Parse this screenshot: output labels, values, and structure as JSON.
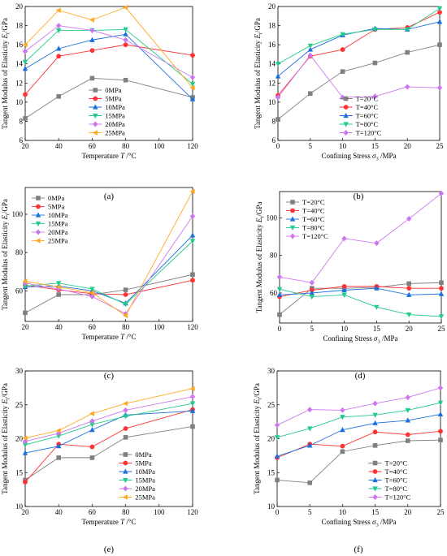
{
  "charts": [
    {
      "panel_label": "(a)",
      "type": "line",
      "title": "",
      "xlabel": "Temperature",
      "xlabel_sym": "T",
      "xlabel_unit": "/°C",
      "ylabel": "Tangent Modulus of Elasticity",
      "ylabel_sym": "E",
      "ylabel_sub": "t",
      "ylabel_unit": "/GPa",
      "xlim": [
        20,
        120
      ],
      "ylim": [
        6,
        20
      ],
      "xticks": [
        20,
        40,
        60,
        80,
        100,
        120
      ],
      "yticks": [
        6,
        8,
        10,
        12,
        14,
        16,
        18,
        20
      ],
      "legend_position": "lower-center",
      "x": [
        20,
        40,
        60,
        80,
        120
      ],
      "series": [
        {
          "name": "0MPa",
          "marker": "square",
          "values": [
            8.3,
            10.6,
            12.5,
            12.3,
            10.5
          ]
        },
        {
          "name": "5MPa",
          "marker": "circle",
          "values": [
            10.8,
            14.8,
            15.4,
            16.0,
            14.9
          ]
        },
        {
          "name": "10MPa",
          "marker": "triangle-up",
          "values": [
            13.5,
            15.6,
            16.5,
            17.1,
            10.3
          ]
        },
        {
          "name": "15MPa",
          "marker": "triangle-down",
          "values": [
            14.2,
            17.5,
            17.5,
            17.6,
            11.9
          ]
        },
        {
          "name": "20MPa",
          "marker": "diamond",
          "values": [
            15.3,
            18.0,
            17.5,
            16.5,
            12.6
          ]
        },
        {
          "name": "25MPa",
          "marker": "triangle-left",
          "values": [
            16.0,
            19.6,
            18.6,
            19.9,
            11.5
          ]
        }
      ]
    },
    {
      "panel_label": "(b)",
      "type": "line",
      "title": "",
      "xlabel": "Confining Stress",
      "xlabel_sym": "σ",
      "xlabel_sub": "3",
      "xlabel_unit": "/MPa",
      "ylabel": "Tangent Modulus of Elasticity",
      "ylabel_sym": "E",
      "ylabel_sub": "t",
      "ylabel_unit": "/GPa",
      "xlim": [
        0,
        25
      ],
      "ylim": [
        6,
        20
      ],
      "xticks": [
        0,
        5,
        10,
        15,
        20,
        25
      ],
      "yticks": [
        6,
        8,
        10,
        12,
        14,
        16,
        18,
        20
      ],
      "legend_position": "lower-center",
      "x": [
        0,
        5,
        10,
        15,
        20,
        25
      ],
      "series": [
        {
          "name": "T=20°C",
          "marker": "square",
          "values": [
            8.2,
            10.9,
            13.2,
            14.1,
            15.2,
            16.0
          ]
        },
        {
          "name": "T=40°C",
          "marker": "circle",
          "values": [
            10.7,
            14.8,
            15.5,
            17.6,
            17.8,
            19.4
          ]
        },
        {
          "name": "T=60°C",
          "marker": "triangle-up",
          "values": [
            12.7,
            15.5,
            17.0,
            17.7,
            17.6,
            18.4
          ]
        },
        {
          "name": "T=80°C",
          "marker": "triangle-down",
          "values": [
            14.0,
            15.9,
            17.1,
            17.6,
            17.6,
            19.8
          ]
        },
        {
          "name": "T=120°C",
          "marker": "diamond",
          "values": [
            10.5,
            14.9,
            10.5,
            10.6,
            11.6,
            11.5
          ]
        }
      ]
    },
    {
      "panel_label": "(c)",
      "type": "line",
      "title": "",
      "xlabel": "Temperature",
      "xlabel_sym": "T",
      "xlabel_unit": "/°C",
      "ylabel": "Tangent Modulus of Elasticity",
      "ylabel_sym": "E",
      "ylabel_sub": "t",
      "ylabel_unit": "/GPa",
      "xlim": [
        20,
        120
      ],
      "ylim": [
        44,
        114
      ],
      "xticks": [
        20,
        40,
        60,
        80,
        100,
        120
      ],
      "yticks": [
        60,
        80,
        100
      ],
      "legend_position": "upper-left",
      "x": [
        20,
        40,
        60,
        80,
        120
      ],
      "series": [
        {
          "name": "0MPa",
          "marker": "square",
          "values": [
            48.5,
            58.0,
            58.0,
            60.5,
            68.5
          ]
        },
        {
          "name": "5MPa",
          "marker": "circle",
          "values": [
            63.0,
            60.5,
            58.5,
            58.0,
            65.5
          ]
        },
        {
          "name": "10MPa",
          "marker": "triangle-up",
          "values": [
            62.0,
            62.5,
            60.0,
            53.5,
            89.0
          ]
        },
        {
          "name": "15MPa",
          "marker": "triangle-down",
          "values": [
            62.5,
            64.0,
            61.0,
            53.0,
            86.0
          ]
        },
        {
          "name": "20MPa",
          "marker": "diamond",
          "values": [
            64.0,
            61.0,
            57.0,
            48.0,
            99.0
          ]
        },
        {
          "name": "25MPa",
          "marker": "triangle-left",
          "values": [
            65.0,
            62.0,
            59.0,
            47.0,
            112.0
          ]
        }
      ]
    },
    {
      "panel_label": "(d)",
      "type": "line",
      "title": "",
      "xlabel": "Confining Stress",
      "xlabel_sym": "σ",
      "xlabel_sub": "3",
      "xlabel_unit": "/MPa",
      "ylabel": "Tangent Modulus of Elasticity",
      "ylabel_sym": "E",
      "ylabel_sub": "t",
      "ylabel_unit": "/GPa",
      "xlim": [
        0,
        25
      ],
      "ylim": [
        44,
        114
      ],
      "xticks": [
        0,
        5,
        10,
        15,
        20,
        25
      ],
      "yticks": [
        60,
        80,
        100
      ],
      "legend_position": "upper-left",
      "x": [
        0,
        5,
        10,
        15,
        20,
        25
      ],
      "series": [
        {
          "name": "T=20°C",
          "marker": "square",
          "values": [
            48.5,
            62.5,
            62.5,
            63.0,
            65.0,
            65.5
          ]
        },
        {
          "name": "T=40°C",
          "marker": "circle",
          "values": [
            58.0,
            61.5,
            63.5,
            63.5,
            62.5,
            62.5
          ]
        },
        {
          "name": "T=60°C",
          "marker": "triangle-up",
          "values": [
            59.0,
            60.0,
            61.5,
            62.5,
            59.0,
            59.5
          ]
        },
        {
          "name": "T=80°C",
          "marker": "triangle-down",
          "values": [
            62.0,
            58.0,
            59.0,
            52.5,
            48.5,
            47.5
          ]
        },
        {
          "name": "T=120°C",
          "marker": "diamond",
          "values": [
            68.5,
            65.5,
            89.0,
            86.5,
            99.5,
            113.0
          ]
        }
      ]
    },
    {
      "panel_label": "(e)",
      "type": "line",
      "title": "",
      "xlabel": "Temperature",
      "xlabel_sym": "T",
      "xlabel_unit": "/°C",
      "ylabel": "Tangent Modulus of Elasticity",
      "ylabel_sym": "E",
      "ylabel_sub": "t",
      "ylabel_unit": "/GPa",
      "xlim": [
        20,
        120
      ],
      "ylim": [
        10,
        30
      ],
      "xticks": [
        20,
        40,
        60,
        80,
        100,
        120
      ],
      "yticks": [
        10,
        15,
        20,
        25,
        30
      ],
      "legend_position": "lower-right",
      "x": [
        20,
        40,
        60,
        80,
        120
      ],
      "series": [
        {
          "name": "0MPa",
          "marker": "square",
          "values": [
            13.9,
            17.2,
            17.2,
            20.2,
            21.8
          ]
        },
        {
          "name": "5MPa",
          "marker": "circle",
          "values": [
            13.6,
            19.2,
            18.8,
            21.5,
            24.3
          ]
        },
        {
          "name": "10MPa",
          "marker": "triangle-up",
          "values": [
            17.9,
            18.9,
            21.3,
            23.5,
            24.1
          ]
        },
        {
          "name": "15MPa",
          "marker": "triangle-down",
          "values": [
            19.1,
            20.4,
            22.1,
            23.3,
            25.2
          ]
        },
        {
          "name": "20MPa",
          "marker": "diamond",
          "values": [
            19.6,
            20.8,
            22.6,
            24.2,
            26.2
          ]
        },
        {
          "name": "25MPa",
          "marker": "triangle-left",
          "values": [
            20.1,
            21.2,
            23.7,
            25.2,
            27.4
          ]
        }
      ]
    },
    {
      "panel_label": "(f)",
      "type": "line",
      "title": "",
      "xlabel": "Confining Stress",
      "xlabel_sym": "σ",
      "xlabel_sub": "3",
      "xlabel_unit": "/MPa",
      "ylabel": "Tangent Modulus of Elasticity",
      "ylabel_sym": "E",
      "ylabel_sub": "t",
      "ylabel_unit": "/GPa",
      "xlim": [
        0,
        25
      ],
      "ylim": [
        10,
        30
      ],
      "xticks": [
        0,
        5,
        10,
        15,
        20,
        25
      ],
      "yticks": [
        10,
        15,
        20,
        25,
        30
      ],
      "legend_position": "lower-right",
      "x": [
        0,
        5,
        10,
        15,
        20,
        25
      ],
      "series": [
        {
          "name": "T=20°C",
          "marker": "square",
          "values": [
            13.9,
            13.5,
            18.1,
            19.0,
            19.7,
            19.8
          ]
        },
        {
          "name": "T=40°C",
          "marker": "circle",
          "values": [
            17.2,
            19.2,
            18.9,
            21.0,
            20.6,
            21.1
          ]
        },
        {
          "name": "T=60°C",
          "marker": "triangle-up",
          "values": [
            17.4,
            19.0,
            21.3,
            22.3,
            22.7,
            23.6
          ]
        },
        {
          "name": "T=80°C",
          "marker": "triangle-down",
          "values": [
            20.2,
            21.5,
            23.2,
            23.5,
            24.2,
            25.3
          ]
        },
        {
          "name": "T=120°C",
          "marker": "diamond",
          "values": [
            22.0,
            24.3,
            24.2,
            25.2,
            26.1,
            27.5
          ]
        }
      ]
    }
  ],
  "palette": [
    "#808080",
    "#ff3333",
    "#1a6fdf",
    "#22cc88",
    "#cc77ee",
    "#ffaa22"
  ]
}
